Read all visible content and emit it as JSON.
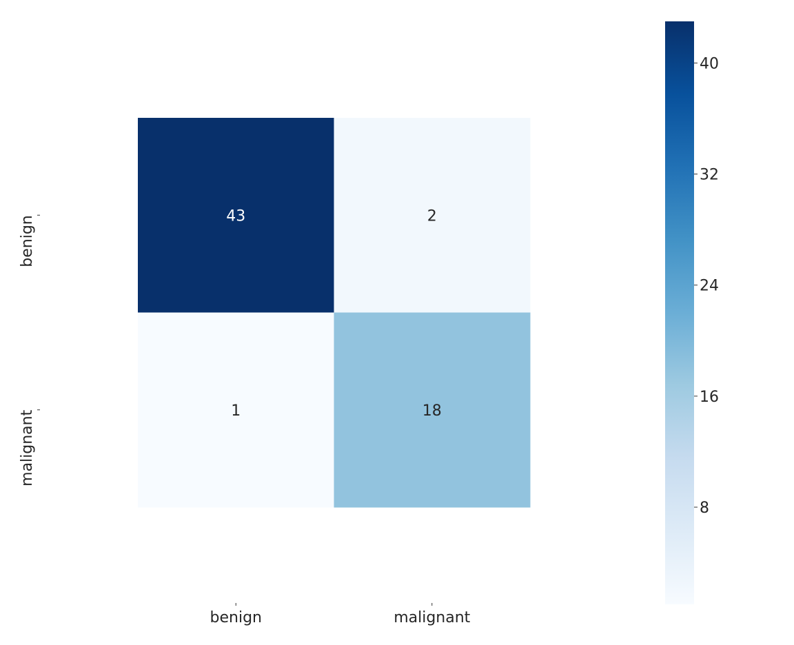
{
  "chart_data": {
    "type": "heatmap",
    "title": "",
    "xlabel": "",
    "ylabel": "",
    "x_categories": [
      "benign",
      "malignant"
    ],
    "y_categories": [
      "benign",
      "malignant"
    ],
    "values": [
      [
        43,
        2
      ],
      [
        1,
        18
      ]
    ],
    "colormap": "Blues",
    "colorbar": {
      "range": [
        1,
        43
      ],
      "ticks": [
        8,
        16,
        24,
        32,
        40
      ],
      "tick_labels": [
        "8",
        "16",
        "24",
        "32",
        "40"
      ]
    },
    "grid": false
  }
}
